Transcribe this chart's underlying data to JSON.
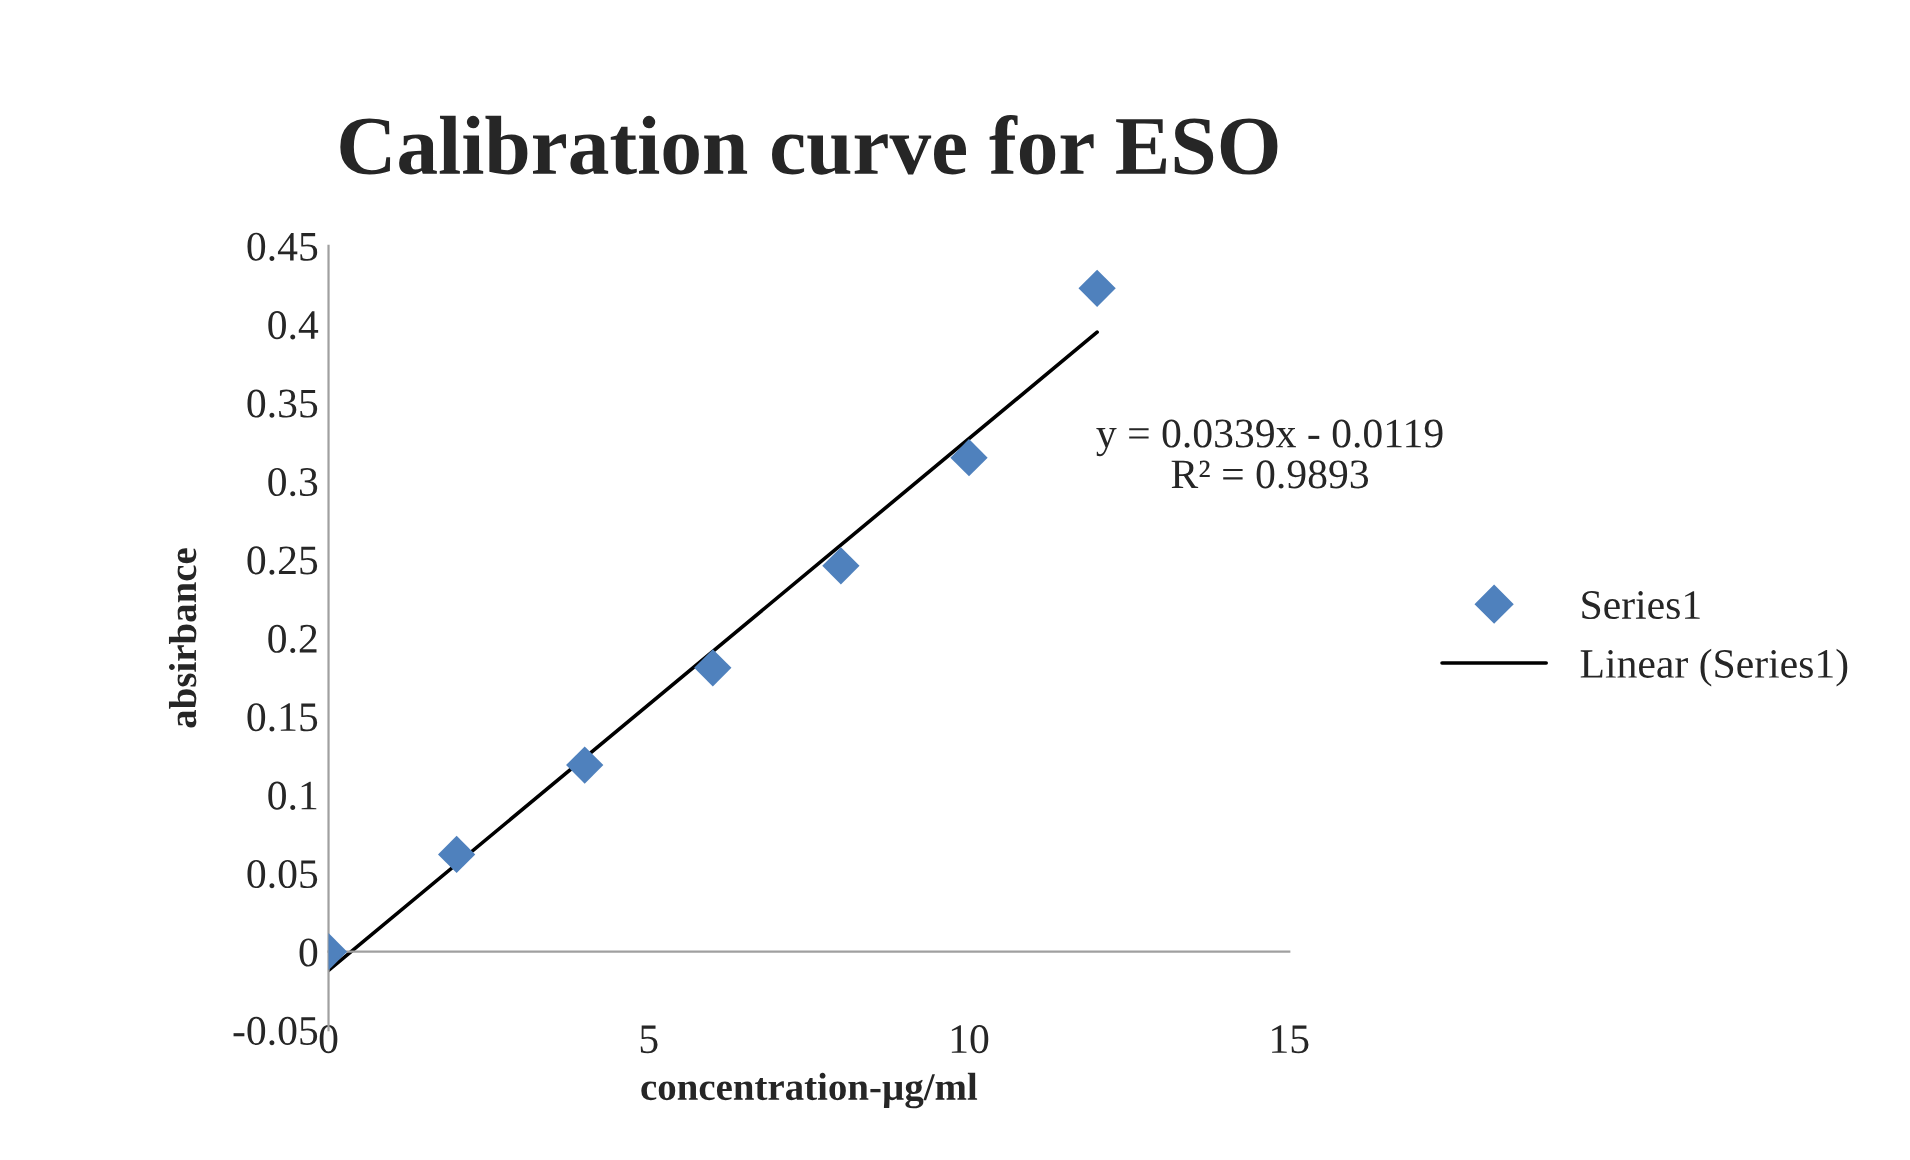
{
  "chart_data": {
    "type": "scatter",
    "title": "Calibration curve for ESO",
    "xlabel": "concentration-µg/ml",
    "ylabel": "absirbance",
    "x": [
      0,
      2,
      4,
      6,
      8,
      10,
      12
    ],
    "series": [
      {
        "name": "Series1",
        "color": "#4f81bd",
        "marker": "diamond",
        "values": [
          0,
          0.062,
          0.119,
          0.181,
          0.246,
          0.315,
          0.423
        ]
      },
      {
        "name": "Linear (Series1)",
        "type": "line",
        "color": "#000000",
        "marker": "none",
        "x": [
          0,
          12
        ],
        "values": [
          -0.012,
          0.395
        ]
      }
    ],
    "annotations": [
      "y = 0.0339x - 0.0119\nR² = 0.9893"
    ],
    "xlim": [
      0,
      15
    ],
    "xticks": [
      0,
      5,
      10,
      15
    ],
    "ylim": [
      -0.05,
      0.45
    ],
    "yticks": [
      -0.05,
      0,
      0.05,
      0.1,
      0.15,
      0.2,
      0.25,
      0.3,
      0.35,
      0.4,
      0.45
    ],
    "grid": false,
    "legend": "right"
  }
}
